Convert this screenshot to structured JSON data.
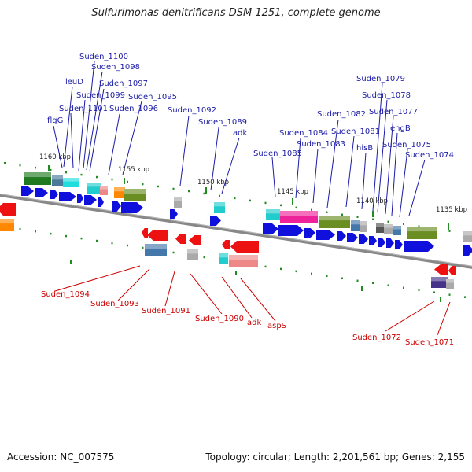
{
  "title": "Sulfurimonas denitrificans DSM 1251, complete genome",
  "accession_text": "Accession: NC_007575",
  "summary_text": "Topology: circular; Length: 2,201,561 bp; Genes: 2,155",
  "colors": {
    "forward_label": "#1a1aa6",
    "reverse_label": "#cc0000",
    "forward_arrow": "#1010dd",
    "reverse_arrow": "#ee1111",
    "backbone": "#888888",
    "tick": "#228b22"
  },
  "position_ticks": [
    "1160 kbp",
    "1155 kbp",
    "1150 kbp",
    "1145 kbp",
    "1140 kbp",
    "1135 kbp"
  ],
  "forward_genes": [
    "Suden_1100",
    "Suden_1098",
    "leuD",
    "Suden_1097",
    "Suden_1099",
    "Suden_1095",
    "Suden_1101",
    "Suden_1096",
    "flgG",
    "Suden_1092",
    "Suden_1089",
    "adk",
    "Suden_1085",
    "Suden_1084",
    "Suden_1083",
    "Suden_1082",
    "Suden_1081",
    "hisB",
    "Suden_1079",
    "Suden_1078",
    "Suden_1077",
    "engB",
    "Suden_1075",
    "Suden_1074"
  ],
  "reverse_genes": [
    "Suden_1094",
    "Suden_1093",
    "Suden_1091",
    "Suden_1090",
    "adk",
    "aspS",
    "Suden_1072",
    "Suden_1071"
  ]
}
